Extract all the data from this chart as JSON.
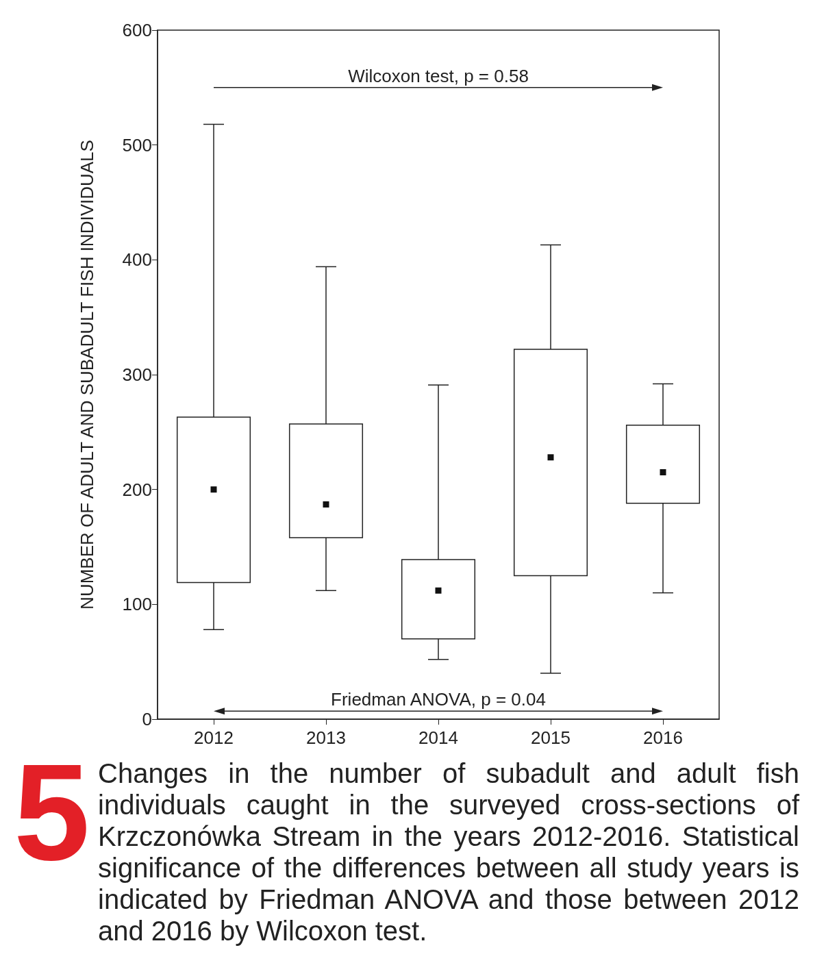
{
  "chart_data": {
    "type": "box",
    "ylabel": "NUMBER OF ADULT AND SUBADULT FISH INDIVIDUALS",
    "categories": [
      "2012",
      "2013",
      "2014",
      "2015",
      "2016"
    ],
    "boxes": [
      {
        "low": 78,
        "q1": 119,
        "median": 200,
        "q3": 263,
        "high": 518
      },
      {
        "low": 112,
        "q1": 158,
        "median": 187,
        "q3": 257,
        "high": 394
      },
      {
        "low": 52,
        "q1": 70,
        "median": 112,
        "q3": 139,
        "high": 291
      },
      {
        "low": 40,
        "q1": 125,
        "median": 228,
        "q3": 322,
        "high": 413
      },
      {
        "low": 110,
        "q1": 188,
        "median": 215,
        "q3": 256,
        "high": 292
      }
    ],
    "ylim": [
      0,
      600
    ],
    "yticks": [
      0,
      100,
      200,
      300,
      400,
      500,
      600
    ],
    "grid": false,
    "marker": "square",
    "annotations": [
      "Wilcoxon test, p = 0.58",
      "Friedman ANOVA, p = 0.04",
      "5",
      "Changes in the number of subadult and adult fish individuals caught in the surveyed cross-sections of Krzczonówka Stream in the years 2012-2016. Statistical significance of the differences between all study years is indicated by Friedman ANOVA and those between 2012 and 2016 by Wilcoxon test."
    ]
  }
}
